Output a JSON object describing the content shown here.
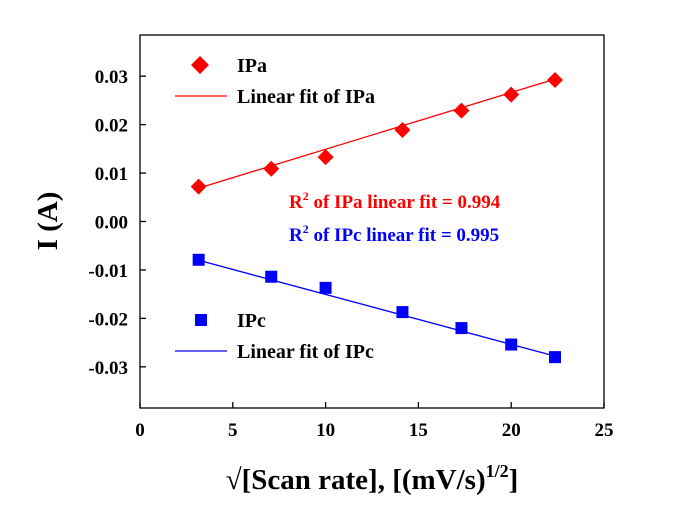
{
  "chart_data": {
    "type": "scatter",
    "xlabel_main": "√[Scan rate], [(mV/s)",
    "xlabel_sup": "1/2",
    "xlabel_end": "]",
    "ylabel": "I (A)",
    "xlim": [
      0,
      25
    ],
    "ylim": [
      -0.0385,
      0.0385
    ],
    "x_ticks": [
      0,
      5,
      10,
      15,
      20,
      25
    ],
    "x_tick_labels": [
      "0",
      "5",
      "10",
      "15",
      "20",
      "25"
    ],
    "y_ticks": [
      0.03,
      0.02,
      0.01,
      0.0,
      -0.01,
      -0.02,
      -0.03
    ],
    "y_tick_labels": [
      "0.03",
      "0.02",
      "0.01",
      "0.00",
      "-0.01",
      "-0.02",
      "-0.03"
    ],
    "grid": false,
    "legend_placement": "top-left and bottom-left",
    "series": [
      {
        "name": "IPa",
        "marker": "diamond",
        "color": "#ff0000",
        "x": [
          3.16,
          7.07,
          10.0,
          14.14,
          17.32,
          20.0,
          22.36
        ],
        "y": [
          0.0072,
          0.0109,
          0.0133,
          0.0189,
          0.0229,
          0.0262,
          0.0292
        ],
        "fit_label": "Linear fit of IPa",
        "fit": [
          [
            3.16,
            0.0069
          ],
          [
            22.36,
            0.0294
          ]
        ]
      },
      {
        "name": "IPc",
        "marker": "square",
        "color": "#0000ff",
        "x": [
          3.16,
          7.07,
          10.0,
          14.14,
          17.32,
          20.0,
          22.36
        ],
        "y": [
          -0.0079,
          -0.0114,
          -0.0137,
          -0.0187,
          -0.022,
          -0.0254,
          -0.028
        ],
        "fit_label": "Linear fit of IPc",
        "fit": [
          [
            3.16,
            -0.008
          ],
          [
            22.36,
            -0.0278
          ]
        ]
      }
    ],
    "annotations": [
      {
        "prefix": "R",
        "sup": "2",
        "text": " of IPa linear fit = 0.994",
        "color": "#ff0000"
      },
      {
        "prefix": "R",
        "sup": "2",
        "text": " of IPc linear fit = 0.995",
        "color": "#0000ff"
      }
    ]
  }
}
